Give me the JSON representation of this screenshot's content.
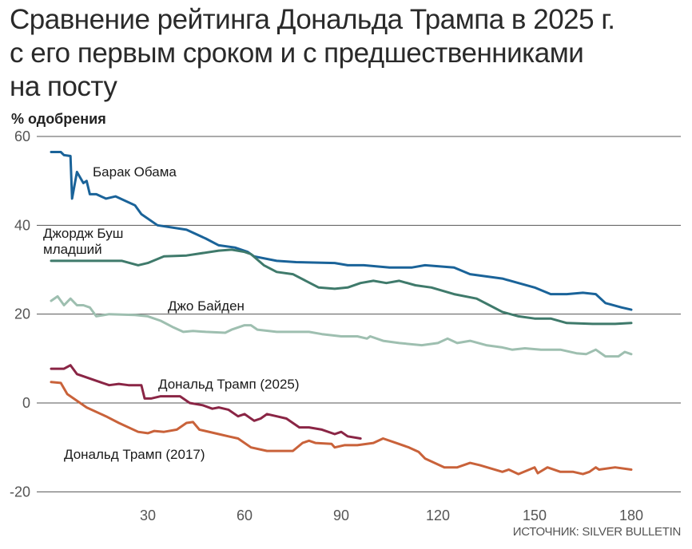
{
  "title_lines": [
    "Сравнение рейтинга Дональда Трампа в 2025 г.",
    "с его первым сроком и с предшественниками",
    "на посту"
  ],
  "source": "ИСТОЧНИК: SILVER BULLETIN",
  "chart_data": {
    "type": "line",
    "title": "Сравнение рейтинга Дональда Трампа в 2025 г. с его первым сроком и с предшественниками на посту",
    "ylabel": "% одобрения",
    "xlabel": "",
    "xlim": [
      0,
      190
    ],
    "ylim": [
      -20,
      60
    ],
    "xticks": [
      30,
      60,
      90,
      120,
      150,
      180
    ],
    "yticks": [
      -20,
      0,
      20,
      40,
      60
    ],
    "grid": "horizontal",
    "series": [
      {
        "name": "Барак Обама",
        "color": "#1a6399",
        "label_lines": [
          "Барак Обама"
        ],
        "x": [
          0,
          3,
          4,
          6,
          6.5,
          8,
          10,
          11,
          12,
          14,
          17,
          20,
          26,
          28,
          33,
          42,
          48,
          52,
          57,
          61,
          63,
          70,
          76,
          88,
          92,
          97,
          105,
          112,
          116,
          125,
          130,
          140,
          145,
          150,
          155,
          160,
          165,
          169,
          172,
          177,
          180
        ],
        "y": [
          56.5,
          56.5,
          55.8,
          55.6,
          46,
          52,
          49.5,
          50,
          47,
          47,
          46,
          46.5,
          44.5,
          42.5,
          40,
          39,
          37,
          35.5,
          35,
          34,
          33,
          32,
          31.7,
          31.5,
          31,
          31,
          30.5,
          30.5,
          31,
          30.5,
          29,
          28,
          27,
          26,
          24.5,
          24.5,
          24.8,
          24.5,
          22.5,
          21.5,
          21
        ]
      },
      {
        "name": "Джордж Буш младший",
        "color": "#3f7a6b",
        "label_lines": [
          "Джордж Буш",
          "младший"
        ],
        "x": [
          0,
          22,
          27,
          30,
          35,
          42,
          52,
          56,
          60,
          62,
          66,
          70,
          75,
          79,
          83,
          88,
          92,
          96,
          100,
          104,
          108,
          113,
          118,
          125,
          132,
          136,
          140,
          145,
          150,
          155,
          160,
          168,
          175,
          180
        ],
        "y": [
          32,
          32,
          31,
          31.5,
          33,
          33.2,
          34.3,
          34.5,
          34,
          33.5,
          31,
          29.5,
          29,
          27.5,
          26,
          25.7,
          26,
          27,
          27.5,
          27,
          27.5,
          26.5,
          26,
          24.5,
          23.5,
          22,
          20.5,
          19.5,
          19,
          19,
          18,
          17.8,
          17.8,
          18
        ]
      },
      {
        "name": "Джо Байден",
        "color": "#9ebfb0",
        "label_lines": [
          "Джо Байден"
        ],
        "x": [
          0,
          2,
          4,
          6,
          8,
          10,
          12,
          14,
          18,
          26,
          30,
          34,
          38,
          41,
          44,
          48,
          54,
          56,
          60,
          62,
          64,
          70,
          76,
          80,
          84,
          90,
          95,
          98,
          99,
          103,
          108,
          115,
          120,
          123,
          126,
          130,
          135,
          140,
          143,
          147,
          152,
          158,
          163,
          166,
          169,
          172,
          176,
          178,
          180
        ],
        "y": [
          23,
          24,
          22,
          23.5,
          22,
          22,
          21.5,
          19.5,
          20,
          19.8,
          19.5,
          18.5,
          17,
          16,
          16.2,
          16,
          15.8,
          16.5,
          17.5,
          17.5,
          16.5,
          16,
          16,
          16,
          15.5,
          15,
          15,
          14.5,
          15,
          14,
          13.5,
          13,
          13.5,
          14.5,
          13.5,
          14,
          13,
          12.5,
          12,
          12.3,
          12,
          12,
          11.2,
          11,
          12,
          10.5,
          10.5,
          11.5,
          11
        ]
      },
      {
        "name": "Дональд Трамп (2025)",
        "color": "#8a2545",
        "label_lines": [
          "Дональд Трамп (2025)"
        ],
        "x": [
          0,
          4,
          6,
          8,
          10,
          14,
          18,
          21,
          24,
          28,
          29,
          31,
          34,
          40,
          43,
          47,
          50,
          52,
          55,
          58,
          60,
          63,
          65,
          67,
          70,
          73,
          77,
          80,
          84,
          88,
          90,
          92,
          96
        ],
        "y": [
          7.7,
          7.7,
          8.5,
          6.5,
          6,
          5,
          4,
          4.3,
          4,
          4,
          1,
          1,
          1.5,
          1.5,
          0,
          -0.5,
          -1.3,
          -1,
          -1.5,
          -3,
          -2.5,
          -4,
          -3.5,
          -2.5,
          -3,
          -3.5,
          -5.5,
          -5.5,
          -6,
          -7,
          -6.5,
          -7.5,
          -8
        ]
      },
      {
        "name": "Дональд Трамп (2017)",
        "color": "#c9623a",
        "label_lines": [
          "Дональд Трамп (2017)"
        ],
        "x": [
          0,
          3,
          5,
          9,
          11,
          17,
          21,
          27,
          30,
          32,
          35,
          39,
          42,
          44,
          46,
          52,
          55,
          58,
          62,
          67,
          72,
          75,
          78,
          80,
          82,
          87,
          88,
          91,
          95,
          100,
          103,
          107,
          111,
          114,
          116,
          122,
          126,
          130,
          133,
          140,
          142,
          145,
          150,
          151,
          154,
          158,
          162,
          165,
          167,
          169,
          170,
          175,
          180
        ],
        "y": [
          4.7,
          4.5,
          2,
          0,
          -1,
          -3,
          -4.5,
          -6.5,
          -6.8,
          -6.3,
          -6.5,
          -6,
          -4.5,
          -4.3,
          -6,
          -7,
          -7.5,
          -8,
          -10,
          -10.8,
          -10.8,
          -10.8,
          -9,
          -8.5,
          -9,
          -9.2,
          -10,
          -9.5,
          -9.5,
          -9,
          -8,
          -9,
          -10,
          -11,
          -12.5,
          -14.5,
          -14.5,
          -13.5,
          -14,
          -15.5,
          -15,
          -16,
          -14.5,
          -15.8,
          -14.5,
          -15.5,
          -15.5,
          -16,
          -15.5,
          -14.5,
          -15,
          -14.5,
          -15
        ]
      }
    ]
  }
}
